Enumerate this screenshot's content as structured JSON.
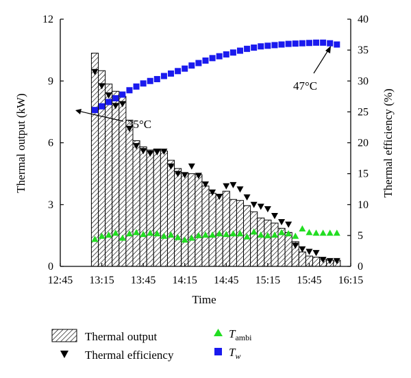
{
  "chart_data": {
    "type": "bar+scatter",
    "xlabel": "Time",
    "ylabel_left": "Thermal output (kW)",
    "ylabel_right": "Thermal efficiency (%)",
    "x_ticks": [
      "12:45",
      "13:15",
      "13:45",
      "14:15",
      "14:45",
      "15:15",
      "15:45",
      "16:15"
    ],
    "y_left_ticks": [
      "0",
      "3",
      "6",
      "9",
      "12"
    ],
    "y_right_ticks": [
      "0",
      "5",
      "10",
      "15",
      "20",
      "25",
      "30",
      "35",
      "40"
    ],
    "ylim_left": [
      0,
      12
    ],
    "ylim_right": [
      0,
      40
    ],
    "x_start_minutes": 765,
    "x_end_minutes": 975,
    "time_step_minutes": 5,
    "first_time_minutes": 790,
    "series": [
      {
        "name": "Thermal output",
        "axis": "left",
        "kind": "bar",
        "values": [
          10.35,
          9.5,
          8.85,
          8.5,
          8.25,
          7.1,
          6.1,
          5.8,
          5.65,
          5.7,
          5.6,
          5.15,
          4.75,
          4.55,
          4.5,
          4.45,
          3.9,
          3.55,
          3.5,
          3.65,
          3.25,
          3.2,
          2.95,
          2.65,
          2.35,
          2.25,
          2.1,
          1.85,
          1.65,
          1.2,
          0.7,
          0.5,
          0.45,
          0.35,
          0.3,
          0.3
        ]
      },
      {
        "name": "Thermal efficiency",
        "axis": "right",
        "kind": "marker",
        "marker": "triangle-down",
        "color": "#000000",
        "values": [
          31.5,
          29.2,
          27.7,
          26.0,
          26.3,
          22.3,
          19.5,
          18.7,
          18.3,
          18.5,
          18.6,
          16.2,
          15.0,
          14.8,
          16.2,
          14.7,
          13.3,
          12.0,
          11.3,
          13.0,
          13.2,
          12.5,
          11.2,
          10.0,
          9.7,
          9.3,
          8.2,
          7.2,
          6.8,
          3.4,
          2.8,
          2.4,
          2.2,
          1.1,
          0.9,
          0.9
        ]
      },
      {
        "name": "T_ambi",
        "axis": "right",
        "kind": "marker",
        "marker": "triangle-up",
        "color": "#22dd22",
        "values": [
          4.4,
          4.9,
          5.1,
          5.4,
          4.6,
          5.3,
          5.5,
          5.2,
          5.4,
          5.3,
          4.9,
          5.1,
          4.7,
          4.3,
          4.6,
          5.0,
          5.1,
          5.1,
          5.3,
          5.2,
          5.3,
          5.3,
          4.8,
          5.6,
          5.1,
          5.0,
          5.1,
          5.5,
          5.3,
          4.9,
          6.1,
          5.5,
          5.4,
          5.4,
          5.4,
          5.4
        ]
      },
      {
        "name": "T_w",
        "axis": "right",
        "kind": "marker",
        "marker": "square",
        "color": "#1a1aee",
        "values": [
          25.3,
          25.9,
          26.6,
          27.2,
          27.8,
          28.5,
          29.1,
          29.6,
          30.0,
          30.3,
          30.8,
          31.2,
          31.6,
          32.0,
          32.5,
          32.9,
          33.3,
          33.7,
          34.0,
          34.3,
          34.6,
          34.9,
          35.2,
          35.4,
          35.6,
          35.7,
          35.8,
          35.9,
          36.0,
          36.05,
          36.1,
          36.15,
          36.2,
          36.2,
          36.1,
          35.9
        ]
      }
    ],
    "annotations": [
      {
        "text": "35°C",
        "points_to_series": "T_w",
        "points_to_index": 0
      },
      {
        "text": "47°C",
        "points_to_series": "T_w",
        "points_to_index": 35
      }
    ],
    "legend": {
      "placement": "bottom",
      "items": [
        {
          "label": "Thermal output",
          "symbol": "hatched-box"
        },
        {
          "label": "Thermal efficiency",
          "symbol": "triangle-down",
          "color": "#000000"
        },
        {
          "label_main": "T",
          "label_sub": "ambi",
          "symbol": "triangle-up",
          "color": "#22dd22"
        },
        {
          "label_main": "T",
          "label_sub": "w",
          "symbol": "square",
          "color": "#1a1aee"
        }
      ]
    },
    "grid": false
  }
}
